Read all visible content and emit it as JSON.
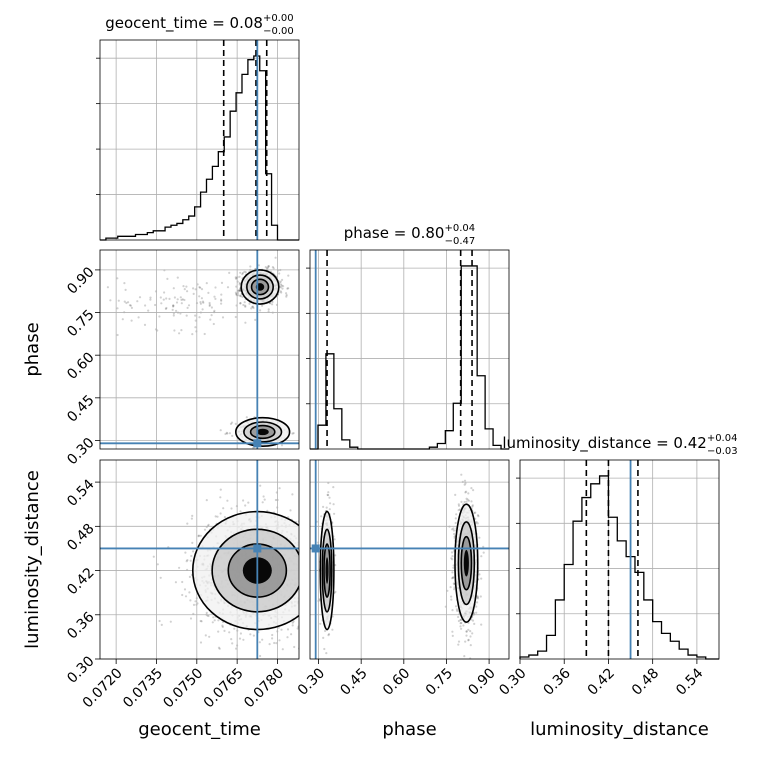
{
  "chart_data": {
    "type": "corner",
    "parameters": [
      {
        "name": "geocent_time",
        "axis_label": "geocent_time",
        "range": [
          0.0714,
          0.0788
        ],
        "ticks": [
          0.072,
          0.0735,
          0.075,
          0.0765,
          0.078
        ],
        "tick_labels": [
          "0.0720",
          "0.0735",
          "0.0750",
          "0.0765",
          "0.0780"
        ],
        "title_prefix": "geocent_time = ",
        "median": "0.08",
        "plus": "+0.00",
        "minus": "−0.00",
        "quantile_lines": [
          0.076,
          0.0772,
          0.0776
        ],
        "truth": 0.07725,
        "hist_bin_edges": [
          0.0714,
          0.07162,
          0.07184,
          0.07206,
          0.07228,
          0.0725,
          0.07272,
          0.07294,
          0.07316,
          0.07338,
          0.0736,
          0.07382,
          0.07404,
          0.07426,
          0.07448,
          0.0747,
          0.07492,
          0.07514,
          0.07536,
          0.07558,
          0.0758,
          0.07602,
          0.07624,
          0.07646,
          0.07668,
          0.0769,
          0.07712,
          0.07734,
          0.07756,
          0.07778,
          0.078,
          0.0788
        ],
        "hist_counts": [
          0,
          1,
          1,
          2,
          2,
          2,
          3,
          3,
          4,
          5,
          5,
          7,
          8,
          9,
          11,
          13,
          18,
          26,
          33,
          40,
          48,
          56,
          70,
          80,
          90,
          98,
          100,
          92,
          36,
          8,
          0
        ]
      },
      {
        "name": "phase",
        "axis_label": "phase",
        "range": [
          0.27,
          0.97
        ],
        "ticks": [
          0.3,
          0.45,
          0.6,
          0.75,
          0.9
        ],
        "tick_labels": [
          "0.30",
          "0.45",
          "0.60",
          "0.75",
          "0.90"
        ],
        "title_prefix": "phase = ",
        "median": "0.80",
        "plus": "+0.04",
        "minus": "−0.47",
        "quantile_lines": [
          0.33,
          0.8,
          0.84
        ],
        "truth": 0.29,
        "hist_bin_edges": [
          0.27,
          0.298,
          0.326,
          0.354,
          0.382,
          0.41,
          0.438,
          0.466,
          0.494,
          0.522,
          0.55,
          0.578,
          0.606,
          0.634,
          0.662,
          0.69,
          0.718,
          0.746,
          0.774,
          0.802,
          0.83,
          0.858,
          0.886,
          0.914,
          0.942,
          0.97
        ],
        "hist_counts": [
          0,
          13,
          52,
          22,
          5,
          1,
          0,
          0,
          0,
          0,
          0,
          0,
          0,
          0,
          0,
          1,
          3,
          10,
          25,
          100,
          100,
          40,
          11,
          2,
          0
        ]
      },
      {
        "name": "luminosity_distance",
        "axis_label": "luminosity_distance",
        "range": [
          0.3,
          0.57
        ],
        "ticks": [
          0.3,
          0.36,
          0.42,
          0.48,
          0.54
        ],
        "tick_labels": [
          "0.30",
          "0.36",
          "0.42",
          "0.48",
          "0.54"
        ],
        "title_prefix": "luminosity_distance = ",
        "median": "0.42",
        "plus": "+0.04",
        "minus": "−0.03",
        "quantile_lines": [
          0.39,
          0.42,
          0.46
        ],
        "truth": 0.45,
        "hist_bin_edges": [
          0.3,
          0.312,
          0.324,
          0.336,
          0.348,
          0.36,
          0.372,
          0.384,
          0.396,
          0.408,
          0.42,
          0.432,
          0.444,
          0.456,
          0.468,
          0.48,
          0.492,
          0.504,
          0.516,
          0.528,
          0.54,
          0.552,
          0.564,
          0.57
        ],
        "hist_counts": [
          1,
          2,
          4,
          12,
          30,
          48,
          70,
          82,
          89,
          93,
          72,
          60,
          52,
          44,
          30,
          19,
          13,
          9,
          5,
          2,
          1,
          0,
          0
        ]
      }
    ],
    "pair_modes": {
      "phase_vs_geocent_time": [
        {
          "x": 0.07735,
          "y": 0.84,
          "sx": 0.00035,
          "sy": 0.03,
          "n": 900
        },
        {
          "x": 0.07745,
          "y": 0.33,
          "sx": 0.0005,
          "sy": 0.025,
          "n": 250
        },
        {
          "x": 0.0745,
          "y": 0.79,
          "sx": 0.0012,
          "sy": 0.05,
          "n": 120
        }
      ],
      "luminosity_distance_vs_geocent_time": [
        {
          "x": 0.07725,
          "y": 0.42,
          "sx": 0.0012,
          "sy": 0.04,
          "n": 1400
        }
      ],
      "luminosity_distance_vs_phase": [
        {
          "x": 0.33,
          "y": 0.42,
          "sx": 0.012,
          "sy": 0.04,
          "n": 350
        },
        {
          "x": 0.82,
          "y": 0.43,
          "sx": 0.02,
          "sy": 0.04,
          "n": 900
        }
      ]
    },
    "truth_color": "#4682b4",
    "grid": true
  }
}
